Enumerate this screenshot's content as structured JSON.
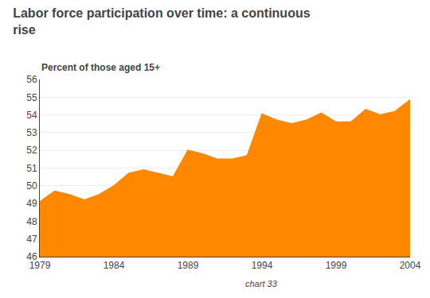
{
  "chart_data": {
    "type": "area",
    "title": "Labor force participation over time: a continuous\nrise",
    "subtitle": "Percent of those aged 15+",
    "caption": "chart 33",
    "color": "#FF8800",
    "x": [
      1979,
      1980,
      1981,
      1982,
      1983,
      1984,
      1985,
      1986,
      1987,
      1988,
      1989,
      1990,
      1991,
      1992,
      1993,
      1994,
      1995,
      1996,
      1997,
      1998,
      1999,
      2000,
      2001,
      2002,
      2003,
      2004
    ],
    "values": [
      49.1,
      49.7,
      49.5,
      49.2,
      49.5,
      50.0,
      50.7,
      50.9,
      50.7,
      50.5,
      52.0,
      51.8,
      51.5,
      51.5,
      51.7,
      54.05,
      53.7,
      53.5,
      53.7,
      54.1,
      53.6,
      53.6,
      54.3,
      54.0,
      54.2,
      54.85
    ],
    "xlim": [
      1979,
      2004
    ],
    "xticks": [
      1979,
      1984,
      1989,
      1994,
      1999,
      2004
    ],
    "ylim": [
      46,
      56
    ],
    "yticks": [
      46,
      47,
      48,
      49,
      50,
      51,
      52,
      53,
      54,
      55,
      56
    ],
    "grid": true
  }
}
